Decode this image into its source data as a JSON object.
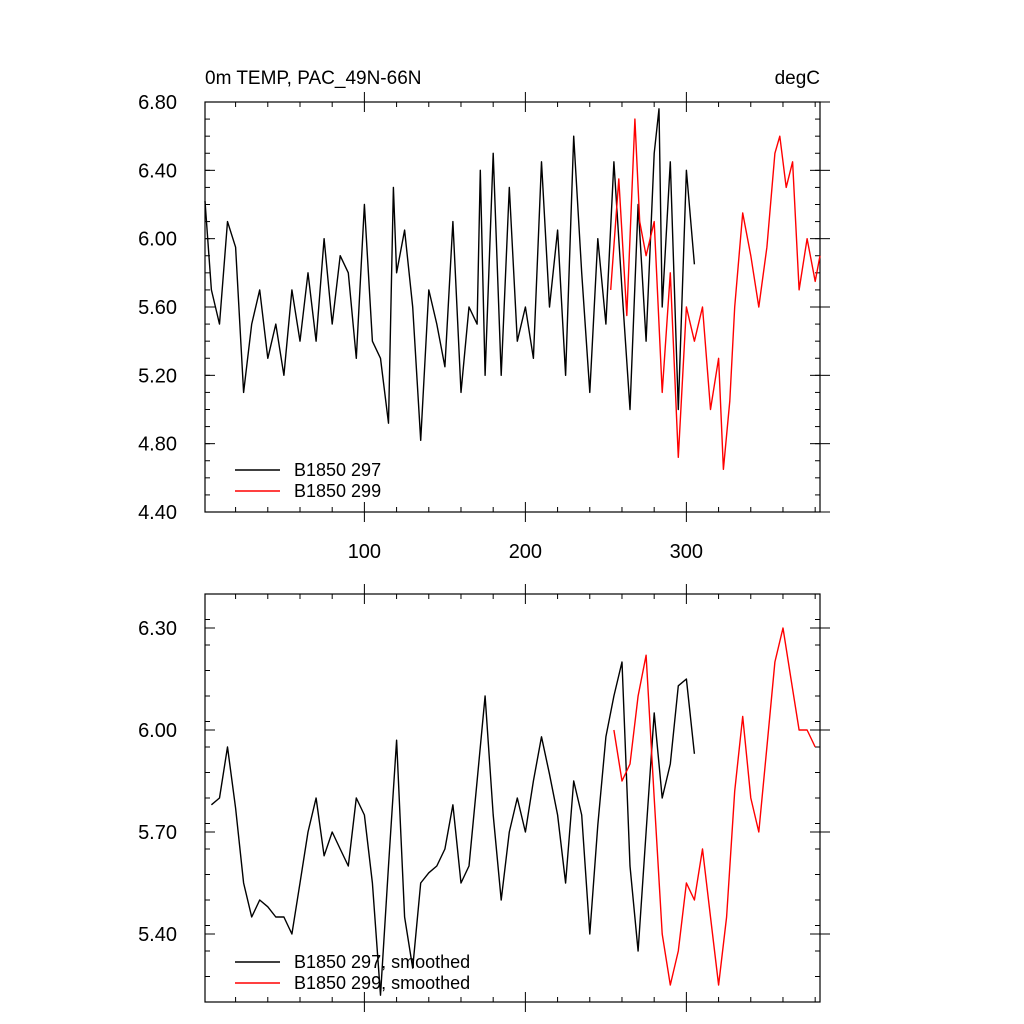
{
  "chart_data": [
    {
      "type": "line",
      "title": "0m TEMP, PAC_49N-66N",
      "units": "degC",
      "xlim": [
        1,
        383
      ],
      "ylim": [
        4.4,
        6.8
      ],
      "x_ticks": [
        100,
        200,
        300
      ],
      "y_ticks": [
        4.4,
        4.8,
        5.2,
        5.6,
        6.0,
        6.4,
        6.8
      ],
      "y_tick_labels": [
        "4.40",
        "4.80",
        "5.20",
        "5.60",
        "6.00",
        "6.40",
        "6.80"
      ],
      "legend": [
        {
          "label": "B1850 297",
          "color": "#000000"
        },
        {
          "label": "B1850 299",
          "color": "#ff0000"
        }
      ],
      "series": [
        {
          "name": "B1850 297",
          "color": "#000000",
          "x": [
            1,
            5,
            10,
            15,
            20,
            25,
            30,
            35,
            40,
            45,
            50,
            55,
            60,
            65,
            70,
            75,
            80,
            85,
            90,
            95,
            100,
            105,
            110,
            115,
            118,
            120,
            125,
            130,
            135,
            140,
            145,
            150,
            155,
            160,
            165,
            170,
            172,
            175,
            180,
            185,
            190,
            195,
            200,
            205,
            210,
            215,
            220,
            225,
            230,
            235,
            240,
            245,
            250,
            255,
            260,
            265,
            270,
            275,
            280,
            283,
            285,
            290,
            295,
            300,
            305
          ],
          "values": [
            6.22,
            5.7,
            5.5,
            6.1,
            5.95,
            5.1,
            5.5,
            5.7,
            5.3,
            5.5,
            5.2,
            5.7,
            5.4,
            5.8,
            5.4,
            6.0,
            5.5,
            5.9,
            5.8,
            5.3,
            6.2,
            5.4,
            5.3,
            4.92,
            6.3,
            5.8,
            6.05,
            5.6,
            4.82,
            5.7,
            5.5,
            5.25,
            6.1,
            5.1,
            5.6,
            5.5,
            6.4,
            5.2,
            6.5,
            5.2,
            6.3,
            5.4,
            5.6,
            5.3,
            6.45,
            5.6,
            6.05,
            5.2,
            6.6,
            5.8,
            5.1,
            6.0,
            5.5,
            6.45,
            5.7,
            5.0,
            6.2,
            5.4,
            6.5,
            6.76,
            5.6,
            6.45,
            5.0,
            6.4,
            5.85
          ]
        },
        {
          "name": "B1850 299",
          "color": "#ff0000",
          "x": [
            253,
            258,
            263,
            268,
            271,
            275,
            280,
            285,
            290,
            295,
            300,
            305,
            310,
            315,
            320,
            323,
            327,
            330,
            335,
            340,
            345,
            350,
            355,
            358,
            362,
            366,
            370,
            375,
            380,
            383
          ],
          "values": [
            5.7,
            6.35,
            5.55,
            6.7,
            6.1,
            5.9,
            6.1,
            5.1,
            5.8,
            4.72,
            5.6,
            5.4,
            5.6,
            5.0,
            5.3,
            4.65,
            5.05,
            5.6,
            6.15,
            5.9,
            5.6,
            5.95,
            6.5,
            6.6,
            6.3,
            6.45,
            5.7,
            6.0,
            5.75,
            5.9
          ]
        }
      ]
    },
    {
      "type": "line",
      "title": "",
      "xlim": [
        1,
        383
      ],
      "ylim": [
        5.2,
        6.4
      ],
      "y_ticks": [
        5.4,
        5.7,
        6.0,
        6.3
      ],
      "y_tick_labels": [
        "5.40",
        "5.70",
        "6.00",
        "6.30"
      ],
      "legend": [
        {
          "label": "B1850 297, smoothed",
          "color": "#000000"
        },
        {
          "label": "B1850 299, smoothed",
          "color": "#ff0000"
        }
      ],
      "series": [
        {
          "name": "B1850 297, smoothed",
          "color": "#000000",
          "x": [
            5,
            10,
            15,
            20,
            25,
            30,
            35,
            40,
            45,
            50,
            55,
            60,
            65,
            70,
            75,
            80,
            85,
            90,
            95,
            100,
            105,
            110,
            115,
            120,
            125,
            130,
            135,
            140,
            145,
            150,
            155,
            160,
            165,
            170,
            175,
            180,
            185,
            190,
            195,
            200,
            205,
            210,
            215,
            220,
            225,
            230,
            235,
            240,
            245,
            250,
            255,
            260,
            265,
            270,
            275,
            280,
            285,
            290,
            295,
            300,
            305
          ],
          "values": [
            5.78,
            5.8,
            5.95,
            5.77,
            5.55,
            5.45,
            5.5,
            5.48,
            5.45,
            5.45,
            5.4,
            5.55,
            5.7,
            5.8,
            5.63,
            5.7,
            5.65,
            5.6,
            5.8,
            5.75,
            5.55,
            5.22,
            5.6,
            5.97,
            5.45,
            5.3,
            5.55,
            5.58,
            5.6,
            5.65,
            5.78,
            5.55,
            5.6,
            5.85,
            6.1,
            5.75,
            5.5,
            5.7,
            5.8,
            5.7,
            5.85,
            5.98,
            5.87,
            5.75,
            5.55,
            5.85,
            5.75,
            5.4,
            5.72,
            5.98,
            6.1,
            6.2,
            5.6,
            5.35,
            5.7,
            6.05,
            5.8,
            5.9,
            6.13,
            6.15,
            5.93
          ]
        },
        {
          "name": "B1850 299, smoothed",
          "color": "#ff0000",
          "x": [
            255,
            260,
            265,
            270,
            275,
            280,
            285,
            290,
            295,
            300,
            305,
            310,
            315,
            320,
            325,
            330,
            335,
            340,
            345,
            350,
            355,
            360,
            365,
            370,
            375,
            380
          ],
          "values": [
            6.0,
            5.85,
            5.9,
            6.1,
            6.22,
            5.8,
            5.4,
            5.25,
            5.35,
            5.55,
            5.5,
            5.65,
            5.45,
            5.25,
            5.45,
            5.82,
            6.04,
            5.8,
            5.7,
            5.95,
            6.2,
            6.3,
            6.15,
            6.0,
            6.0,
            5.95
          ]
        }
      ]
    }
  ]
}
